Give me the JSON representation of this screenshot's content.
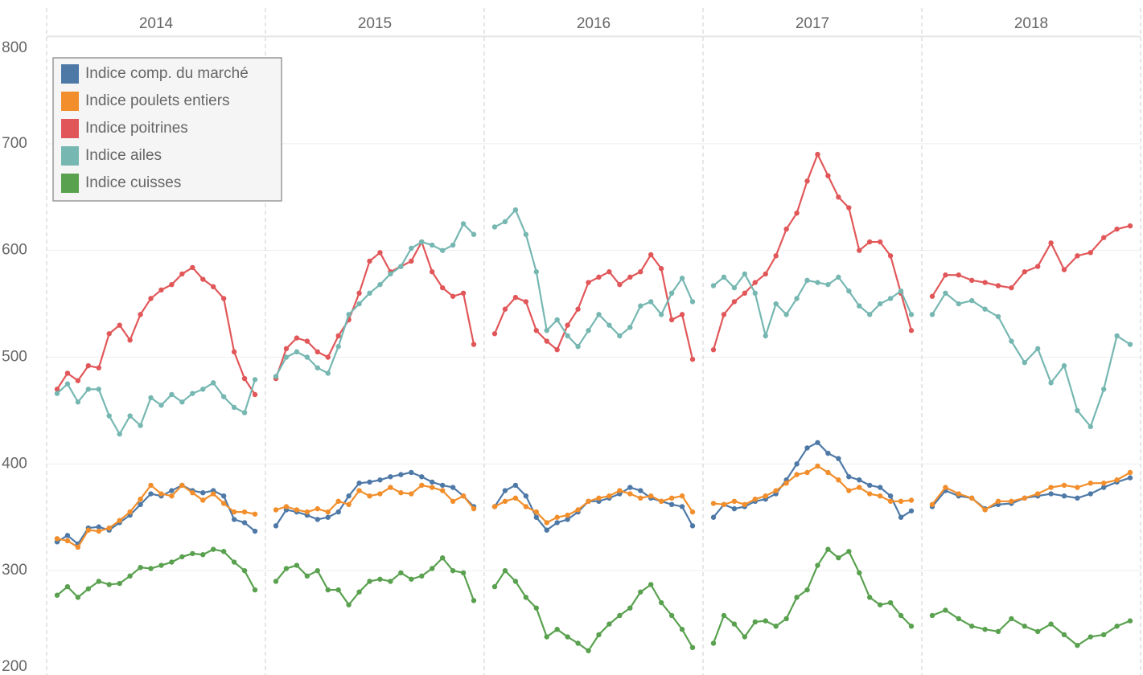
{
  "chart_data": {
    "type": "line",
    "facets": [
      "2014",
      "2015",
      "2016",
      "2017",
      "2018"
    ],
    "ylim": [
      200,
      800
    ],
    "yticks": [
      200,
      300,
      400,
      500,
      600,
      700,
      800
    ],
    "grid": true,
    "legend": "top-left",
    "series": [
      {
        "name": "Indice comp. du marché",
        "color": "#4e79a7",
        "values": [
          [
            327,
            333,
            325,
            340,
            341,
            338,
            345,
            352,
            362,
            372,
            370,
            375,
            380,
            375,
            373,
            375,
            370,
            348,
            345,
            337
          ],
          [
            342,
            357,
            355,
            352,
            348,
            350,
            355,
            370,
            382,
            383,
            385,
            388,
            390,
            392,
            388,
            383,
            380,
            378,
            370,
            360
          ],
          [
            360,
            375,
            380,
            370,
            350,
            338,
            345,
            348,
            355,
            365,
            365,
            368,
            372,
            378,
            375,
            368,
            365,
            362,
            360,
            342
          ],
          [
            350,
            362,
            358,
            360,
            365,
            367,
            372,
            385,
            400,
            415,
            420,
            410,
            405,
            388,
            385,
            380,
            378,
            370,
            350,
            356
          ],
          [
            360,
            375,
            370,
            368,
            358,
            362,
            363,
            368,
            370,
            372,
            370,
            368,
            372,
            378,
            383,
            387
          ]
        ]
      },
      {
        "name": "Indice poulets entiers",
        "color": "#f28e2b",
        "values": [
          [
            330,
            328,
            322,
            338,
            337,
            340,
            347,
            355,
            367,
            380,
            372,
            370,
            380,
            373,
            366,
            372,
            363,
            355,
            355,
            353
          ],
          [
            357,
            360,
            357,
            355,
            358,
            355,
            365,
            362,
            375,
            370,
            372,
            378,
            373,
            372,
            380,
            378,
            375,
            365,
            370,
            358
          ],
          [
            360,
            365,
            368,
            360,
            355,
            345,
            350,
            352,
            357,
            365,
            368,
            370,
            375,
            372,
            368,
            370,
            365,
            368,
            370,
            355
          ],
          [
            363,
            362,
            365,
            362,
            367,
            370,
            375,
            382,
            390,
            392,
            398,
            392,
            385,
            375,
            378,
            372,
            370,
            365,
            365,
            366
          ],
          [
            362,
            378,
            372,
            368,
            357,
            365,
            365,
            368,
            372,
            378,
            380,
            378,
            382,
            382,
            385,
            392
          ]
        ]
      },
      {
        "name": "Indice poitrines",
        "color": "#e15759",
        "values": [
          [
            470,
            485,
            478,
            492,
            490,
            522,
            530,
            516,
            540,
            555,
            563,
            568,
            578,
            584,
            573,
            566,
            555,
            505,
            480,
            465
          ],
          [
            480,
            508,
            518,
            515,
            505,
            500,
            520,
            535,
            560,
            590,
            598,
            580,
            585,
            590,
            608,
            580,
            565,
            557,
            560,
            512
          ],
          [
            522,
            545,
            556,
            552,
            525,
            515,
            507,
            530,
            545,
            570,
            575,
            580,
            568,
            575,
            580,
            596,
            583,
            535,
            540,
            498
          ],
          [
            507,
            540,
            552,
            560,
            570,
            578,
            595,
            620,
            635,
            665,
            690,
            670,
            650,
            640,
            600,
            608,
            608,
            595,
            560,
            525
          ],
          [
            557,
            577,
            577,
            572,
            570,
            567,
            565,
            580,
            585,
            607,
            582,
            595,
            598,
            612,
            620,
            623
          ]
        ]
      },
      {
        "name": "Indice ailes",
        "color": "#76b7b2",
        "values": [
          [
            466,
            475,
            458,
            470,
            470,
            445,
            428,
            445,
            436,
            462,
            455,
            465,
            458,
            466,
            470,
            476,
            463,
            453,
            448,
            479
          ],
          [
            482,
            500,
            505,
            500,
            490,
            485,
            510,
            540,
            550,
            560,
            568,
            578,
            585,
            602,
            608,
            605,
            600,
            605,
            625,
            615
          ],
          [
            622,
            627,
            638,
            615,
            580,
            525,
            535,
            520,
            510,
            525,
            540,
            530,
            520,
            528,
            548,
            552,
            540,
            560,
            574,
            552
          ],
          [
            567,
            575,
            565,
            578,
            560,
            520,
            550,
            540,
            555,
            572,
            570,
            568,
            575,
            562,
            548,
            540,
            550,
            555,
            562,
            540
          ],
          [
            540,
            560,
            550,
            553,
            545,
            538,
            515,
            495,
            508,
            476,
            492,
            450,
            435,
            470,
            520,
            512
          ]
        ]
      },
      {
        "name": "Indice cuisses",
        "color": "#59a14f",
        "values": [
          [
            277,
            285,
            275,
            283,
            290,
            287,
            288,
            295,
            303,
            302,
            305,
            308,
            313,
            316,
            315,
            320,
            318,
            308,
            300,
            282
          ],
          [
            290,
            302,
            305,
            295,
            300,
            282,
            282,
            268,
            280,
            290,
            292,
            290,
            298,
            292,
            295,
            302,
            312,
            300,
            298,
            272
          ],
          [
            285,
            300,
            290,
            275,
            265,
            238,
            245,
            238,
            232,
            225,
            240,
            250,
            258,
            265,
            280,
            287,
            270,
            258,
            245,
            228
          ],
          [
            232,
            258,
            250,
            238,
            252,
            253,
            248,
            255,
            275,
            282,
            305,
            320,
            312,
            318,
            298,
            275,
            268,
            270,
            258,
            248
          ],
          [
            258,
            263,
            255,
            248,
            245,
            243,
            255,
            248,
            243,
            250,
            240,
            230,
            238,
            240,
            248,
            253
          ]
        ]
      }
    ]
  }
}
